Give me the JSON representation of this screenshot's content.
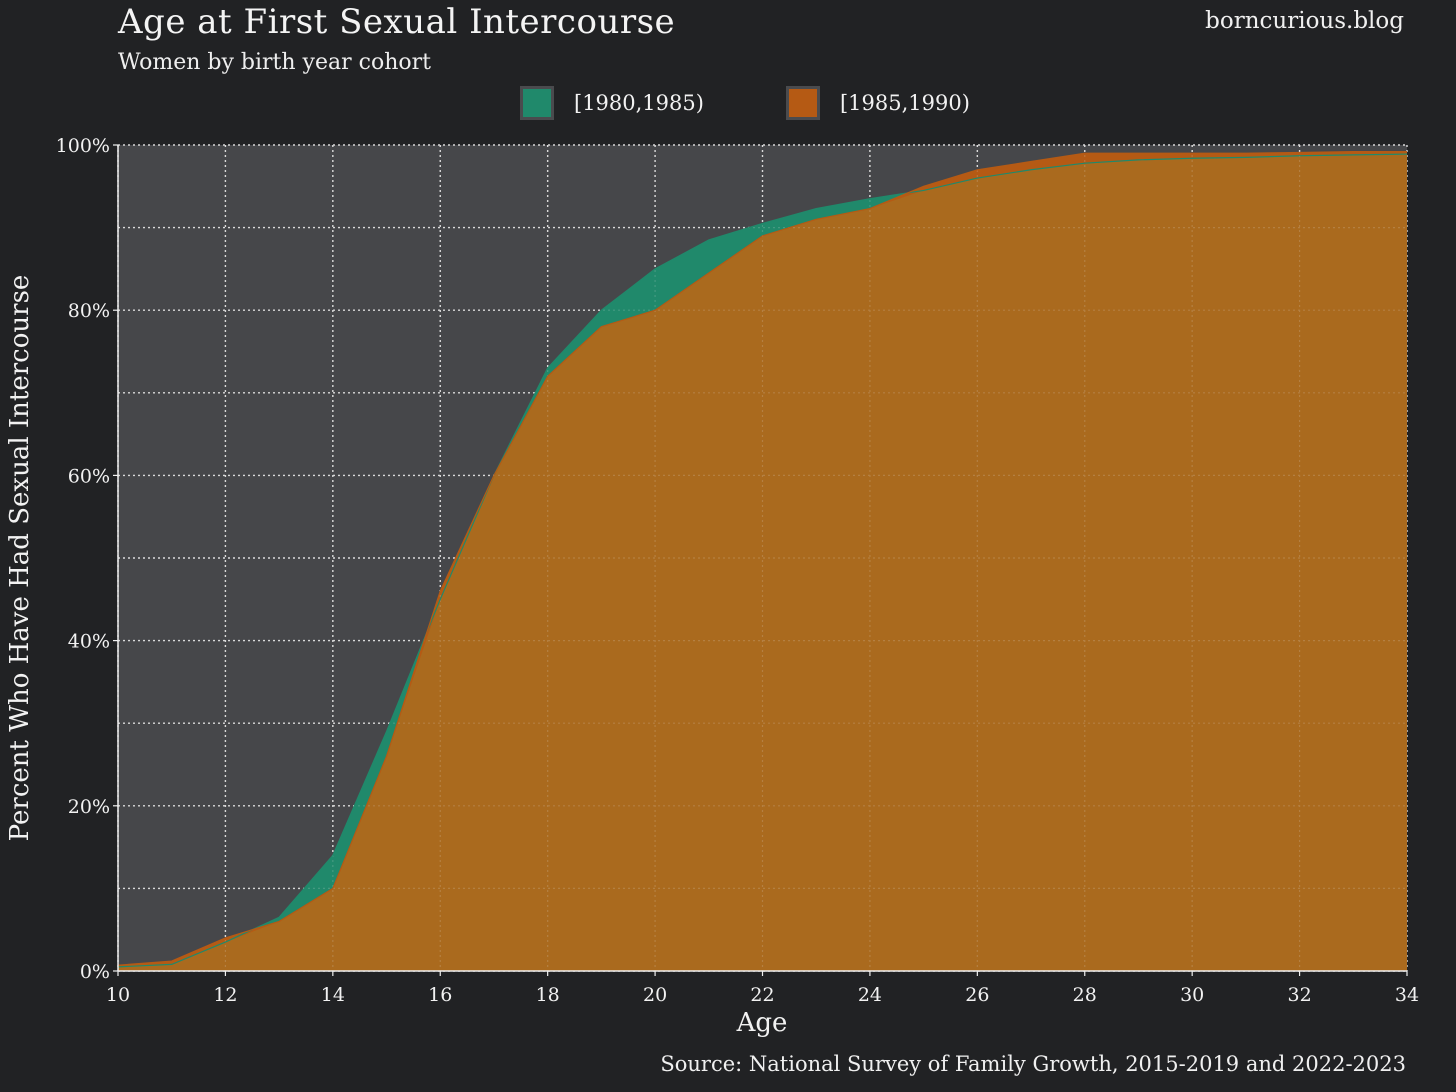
{
  "header": {
    "title": "Age at First Sexual Intercourse",
    "subtitle": "Women by birth year cohort",
    "brand": "borncurious.blog",
    "source": "Source: National Survey of Family Growth, 2015-2019 and 2022-2023"
  },
  "colors": {
    "background": "#212224",
    "panel": "#46474a",
    "series_1980": "#20896b",
    "series_1985": "#b55a14",
    "overlap": "#aa6a1e"
  },
  "chart_data": {
    "type": "area",
    "title": "Age at First Sexual Intercourse",
    "subtitle": "Women by birth year cohort",
    "xlabel": "Age",
    "ylabel": "Percent Who Have Had Sexual Intercourse",
    "xlim": [
      10,
      34
    ],
    "ylim": [
      0,
      100
    ],
    "x_ticks": [
      10,
      12,
      14,
      16,
      18,
      20,
      22,
      24,
      26,
      28,
      30,
      32,
      34
    ],
    "y_ticks": [
      0,
      20,
      40,
      60,
      80,
      100
    ],
    "y_tick_labels": [
      "0%",
      "20%",
      "40%",
      "60%",
      "80%",
      "100%"
    ],
    "grid": true,
    "legend_position": "top-center",
    "series": [
      {
        "name": "[1980,1985)",
        "color": "#20896b",
        "x": [
          10,
          11,
          12,
          13,
          14,
          15,
          16,
          17,
          18,
          19,
          20,
          21,
          22,
          23,
          24,
          25,
          26,
          27,
          28,
          29,
          30,
          31,
          32,
          33,
          34
        ],
        "values": [
          0.5,
          0.8,
          3.5,
          6.5,
          14,
          29,
          45,
          60,
          73,
          80,
          85,
          88.5,
          90.5,
          92.3,
          93.5,
          94.5,
          96,
          97,
          97.8,
          98.2,
          98.4,
          98.5,
          98.7,
          98.8,
          98.9
        ]
      },
      {
        "name": "[1985,1990)",
        "color": "#b55a14",
        "x": [
          10,
          11,
          12,
          13,
          14,
          15,
          16,
          17,
          18,
          19,
          20,
          21,
          22,
          23,
          24,
          25,
          26,
          27,
          28,
          29,
          30,
          31,
          32,
          33,
          34
        ],
        "values": [
          0.7,
          1.2,
          4,
          6,
          10,
          26,
          46,
          60,
          72,
          78,
          80,
          84.5,
          89,
          91,
          92.3,
          95,
          97,
          98,
          99,
          99,
          99,
          99,
          99.1,
          99.2,
          99.2
        ]
      }
    ]
  }
}
